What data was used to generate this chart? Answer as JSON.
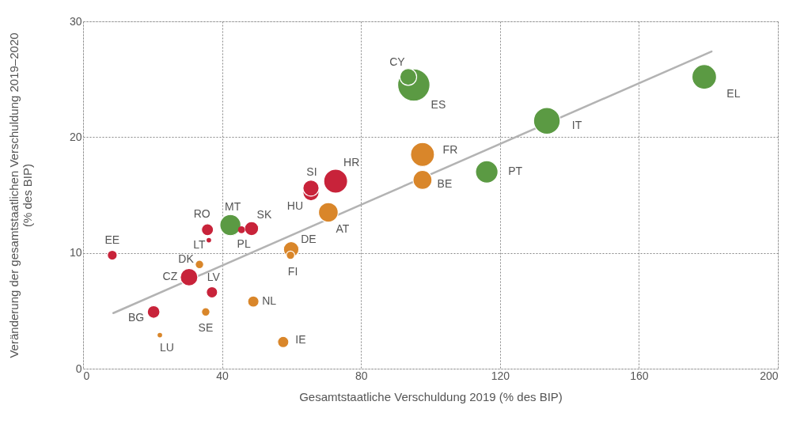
{
  "chart_data": {
    "type": "bubble",
    "xlabel": "Gesamtstaatliche Verschuldung 2019 (% des BIP)",
    "ylabel": "Veränderung der gesamtstaatlichen Verschuldung 2019–2020\n(% des BIP)",
    "xlim": [
      0,
      200
    ],
    "xticks": [
      0,
      40,
      80,
      120,
      160,
      200
    ],
    "ylim": [
      0,
      30
    ],
    "yticks": [
      0,
      10,
      20,
      30
    ],
    "grid": true,
    "marker": "circle",
    "series": [
      {
        "color": "#c8233a",
        "x": [
          8.4,
          35.8,
          36.2,
          45.6,
          48.5,
          30.5,
          37.1,
          20.3,
          65.6,
          65.6,
          72.7
        ],
        "values": [
          9.8,
          12.0,
          11.1,
          12.0,
          12.1,
          7.9,
          6.6,
          4.9,
          15.2,
          15.6,
          16.2
        ],
        "sizes": [
          0.093,
          0.137,
          0.02,
          0.047,
          0.189,
          0.295,
          0.121,
          0.153,
          0.25,
          0.25,
          0.546
        ]
      },
      {
        "color": "#d9862a",
        "x": [
          33.5,
          35.3,
          22.1,
          49.0,
          57.6,
          59.9,
          59.7,
          70.6,
          97.7,
          97.7
        ],
        "values": [
          9.0,
          4.9,
          2.9,
          5.8,
          2.3,
          10.3,
          9.8,
          13.5,
          18.5,
          16.3
        ],
        "sizes": [
          0.068,
          0.068,
          0.02,
          0.121,
          0.121,
          0.229,
          0.068,
          0.371,
          0.546,
          0.345
        ]
      },
      {
        "color": "#5b9a43",
        "x": [
          42.4,
          116.2,
          133.5,
          93.6,
          95.2,
          178.8
        ],
        "values": [
          12.4,
          17.0,
          21.4,
          25.2,
          24.5,
          25.2
        ],
        "sizes": [
          0.425,
          0.484,
          0.682,
          0.272,
          1,
          0.579
        ]
      },
      {
        "type": "line",
        "marker": "none",
        "color": "#b3b3b3",
        "x": [
          8.7,
          180.9
        ],
        "values": [
          4.8,
          27.4
        ]
      }
    ],
    "annotations": [
      {
        "text": "EE",
        "x": 8.4,
        "y": 9.8
      },
      {
        "text": "RO",
        "x": 35.8,
        "y": 12.0
      },
      {
        "text": "LT",
        "x": 36.2,
        "y": 11.1
      },
      {
        "text": "PL",
        "x": 45.6,
        "y": 12.0
      },
      {
        "text": "SK",
        "x": 48.5,
        "y": 12.1
      },
      {
        "text": "CZ",
        "x": 30.5,
        "y": 7.9
      },
      {
        "text": "LV",
        "x": 37.1,
        "y": 6.6
      },
      {
        "text": "BG",
        "x": 20.3,
        "y": 4.9
      },
      {
        "text": "HU",
        "x": 65.6,
        "y": 15.2
      },
      {
        "text": "SI",
        "x": 65.6,
        "y": 15.6
      },
      {
        "text": "HR",
        "x": 72.7,
        "y": 16.2
      },
      {
        "text": "DK",
        "x": 33.5,
        "y": 9.0
      },
      {
        "text": "SE",
        "x": 35.3,
        "y": 4.9
      },
      {
        "text": "LU",
        "x": 22.1,
        "y": 2.9
      },
      {
        "text": "NL",
        "x": 49.0,
        "y": 5.8
      },
      {
        "text": "IE",
        "x": 57.6,
        "y": 2.3
      },
      {
        "text": "DE",
        "x": 59.9,
        "y": 10.3
      },
      {
        "text": "FI",
        "x": 59.7,
        "y": 9.8
      },
      {
        "text": "AT",
        "x": 70.6,
        "y": 13.5
      },
      {
        "text": "FR",
        "x": 97.7,
        "y": 18.5
      },
      {
        "text": "BE",
        "x": 97.7,
        "y": 16.3
      },
      {
        "text": "MT",
        "x": 42.4,
        "y": 12.4
      },
      {
        "text": "PT",
        "x": 116.2,
        "y": 17.0
      },
      {
        "text": "IT",
        "x": 133.5,
        "y": 21.4
      },
      {
        "text": "CY",
        "x": 93.6,
        "y": 25.2
      },
      {
        "text": "ES",
        "x": 95.2,
        "y": 24.5
      },
      {
        "text": "EL",
        "x": 178.8,
        "y": 25.2
      }
    ]
  }
}
